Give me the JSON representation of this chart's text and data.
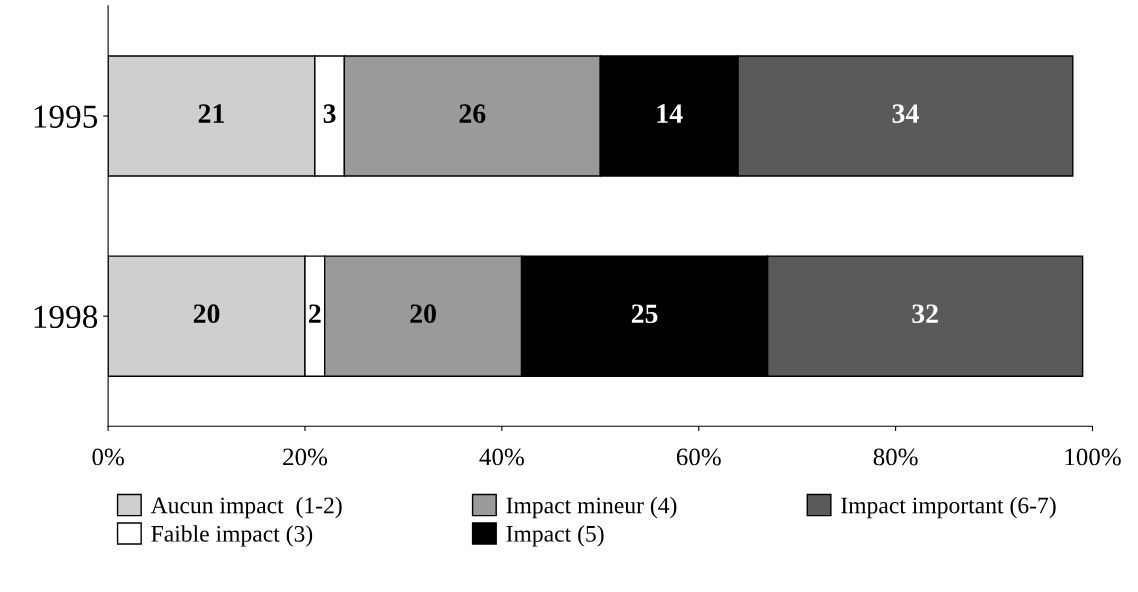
{
  "chart_data": {
    "type": "bar",
    "orientation": "horizontal",
    "stacked": true,
    "data_labels": true,
    "grid": false,
    "legend": "bottom",
    "categories": [
      "1995",
      "1998"
    ],
    "series": [
      {
        "name": "Aucun impact  (1-2)",
        "color": "#cfcfcf",
        "values": [
          21,
          20
        ]
      },
      {
        "name": "Faible impact (3)",
        "color": "#ffffff",
        "values": [
          3,
          2
        ]
      },
      {
        "name": "Impact mineur (4)",
        "color": "#9a9a9a",
        "values": [
          26,
          20
        ]
      },
      {
        "name": "Impact (5)",
        "color": "#000000",
        "values": [
          14,
          25
        ]
      },
      {
        "name": "Impact important (6-7)",
        "color": "#5a5a5a",
        "values": [
          34,
          32
        ]
      }
    ],
    "xlim": [
      0,
      100
    ],
    "xticks": [
      {
        "value": 0,
        "label": "0%"
      },
      {
        "value": 20,
        "label": "20%"
      },
      {
        "value": 40,
        "label": "40%"
      },
      {
        "value": 60,
        "label": "60%"
      },
      {
        "value": 80,
        "label": "80%"
      },
      {
        "value": 100,
        "label": "100%"
      }
    ]
  }
}
